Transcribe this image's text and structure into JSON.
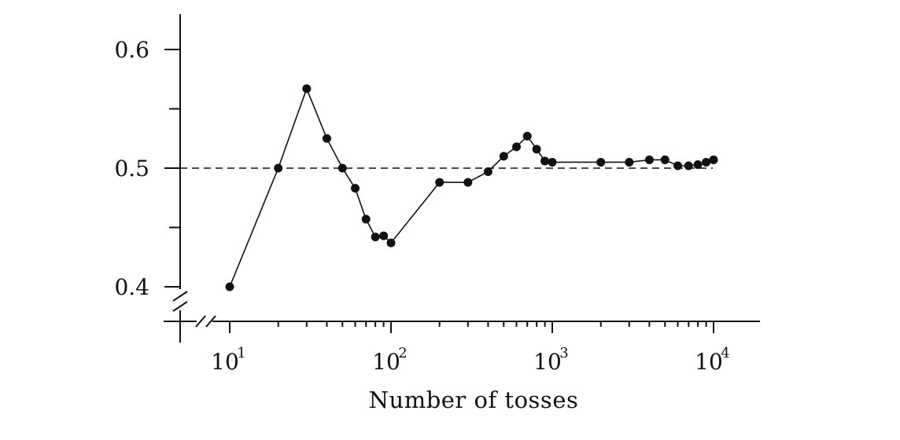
{
  "chart_data": {
    "type": "line",
    "xlabel": "Number of tosses",
    "ylabel": "",
    "xscale": "log",
    "xlim": [
      5,
      20000
    ],
    "ylim": [
      0.4,
      0.6
    ],
    "axis_break": true,
    "grid": false,
    "x_ticks": [
      {
        "base": "10",
        "exp": "1",
        "value": 10
      },
      {
        "base": "10",
        "exp": "2",
        "value": 100
      },
      {
        "base": "10",
        "exp": "3",
        "value": 1000
      },
      {
        "base": "10",
        "exp": "4",
        "value": 10000
      }
    ],
    "y_ticks": [
      {
        "label": "0.4",
        "value": 0.4
      },
      {
        "label": "0.5",
        "value": 0.5
      },
      {
        "label": "0.6",
        "value": 0.6
      }
    ],
    "y_minor_ticks": [
      0.45,
      0.55
    ],
    "reference_line": {
      "y": 0.5,
      "style": "dashed"
    },
    "series": [
      {
        "x": [
          10,
          20,
          30,
          40,
          50,
          60,
          70,
          80,
          90,
          100,
          200,
          300,
          400,
          500,
          600,
          700,
          800,
          900,
          1000,
          2000,
          3000,
          4000,
          5000,
          6000,
          7000,
          8000,
          9000,
          10000
        ],
        "y": [
          0.4,
          0.5,
          0.567,
          0.525,
          0.5,
          0.483,
          0.457,
          0.442,
          0.443,
          0.437,
          0.488,
          0.488,
          0.497,
          0.51,
          0.518,
          0.527,
          0.516,
          0.506,
          0.505,
          0.505,
          0.505,
          0.507,
          0.507,
          0.502,
          0.502,
          0.503,
          0.505,
          0.507
        ],
        "color": "#111111"
      }
    ]
  }
}
